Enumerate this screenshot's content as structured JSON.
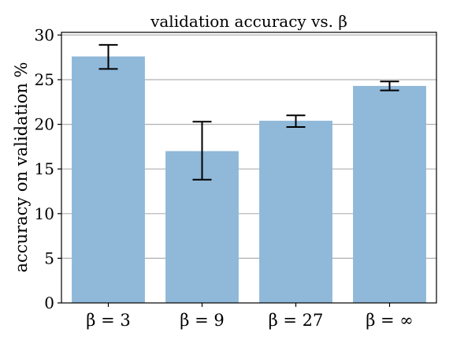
{
  "chart_data": {
    "type": "bar",
    "title": "validation accuracy vs. β",
    "ylabel": "accuracy on validation %",
    "xlabel": "",
    "categories": [
      "β = 3",
      "β = 9",
      "β = 27",
      "β = ∞"
    ],
    "values": [
      27.6,
      17.0,
      20.4,
      24.3
    ],
    "errors": [
      [
        26.2,
        28.9
      ],
      [
        13.8,
        20.3
      ],
      [
        19.7,
        21.0
      ],
      [
        23.8,
        24.8
      ]
    ],
    "ylim": [
      0,
      30.3
    ],
    "yticks": [
      0,
      5,
      10,
      15,
      20,
      25,
      30
    ],
    "grid": "horizontal",
    "colors": {
      "bar": "#8fb8d9",
      "error": "#000000",
      "grid": "#b0b0b0"
    }
  }
}
